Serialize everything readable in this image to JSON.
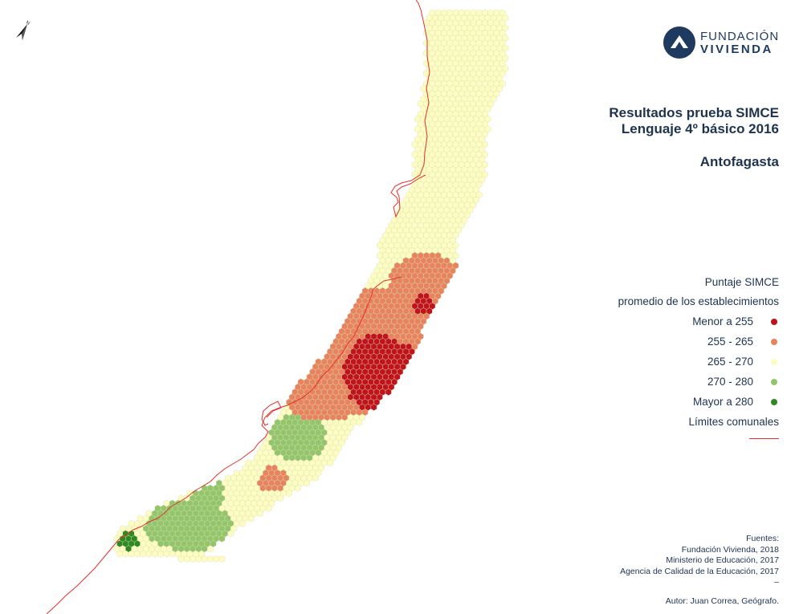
{
  "logo": {
    "line1": "FUNDACIÓN",
    "line2": "VIVIENDA",
    "color": "#1e3a5f"
  },
  "title": {
    "line1": "Resultados prueba SIMCE",
    "line2": "Lenguaje 4º básico 2016",
    "region": "Antofagasta"
  },
  "legend": {
    "header1": "Puntaje SIMCE",
    "header2": "promedio de los establecimientos",
    "classes": [
      {
        "label": "Menor a 255",
        "color": "#c0131a",
        "key": "red"
      },
      {
        "label": "255 - 265",
        "color": "#e8845c",
        "key": "orange"
      },
      {
        "label": "265 - 270",
        "color": "#fdfdc0",
        "key": "yellow"
      },
      {
        "label": "270 - 280",
        "color": "#93c669",
        "key": "lgreen"
      },
      {
        "label": "Mayor a 280",
        "color": "#2e8a1f",
        "key": "dgreen"
      }
    ],
    "boundary_label": "Límites comunales",
    "boundary_color": "#e3302a"
  },
  "sources": {
    "header": "Fuentes:",
    "items": [
      "Fundación Vivienda, 2018",
      "Ministerio de Educación, 2017",
      "Agencia de Calidad de la Educación, 2017"
    ],
    "sep": "–"
  },
  "author": "Autor: Juan Correa, Geógrafo.",
  "north_icon": "north-arrow-icon",
  "map": {
    "hex_stroke": "#d9d9c6"
  }
}
